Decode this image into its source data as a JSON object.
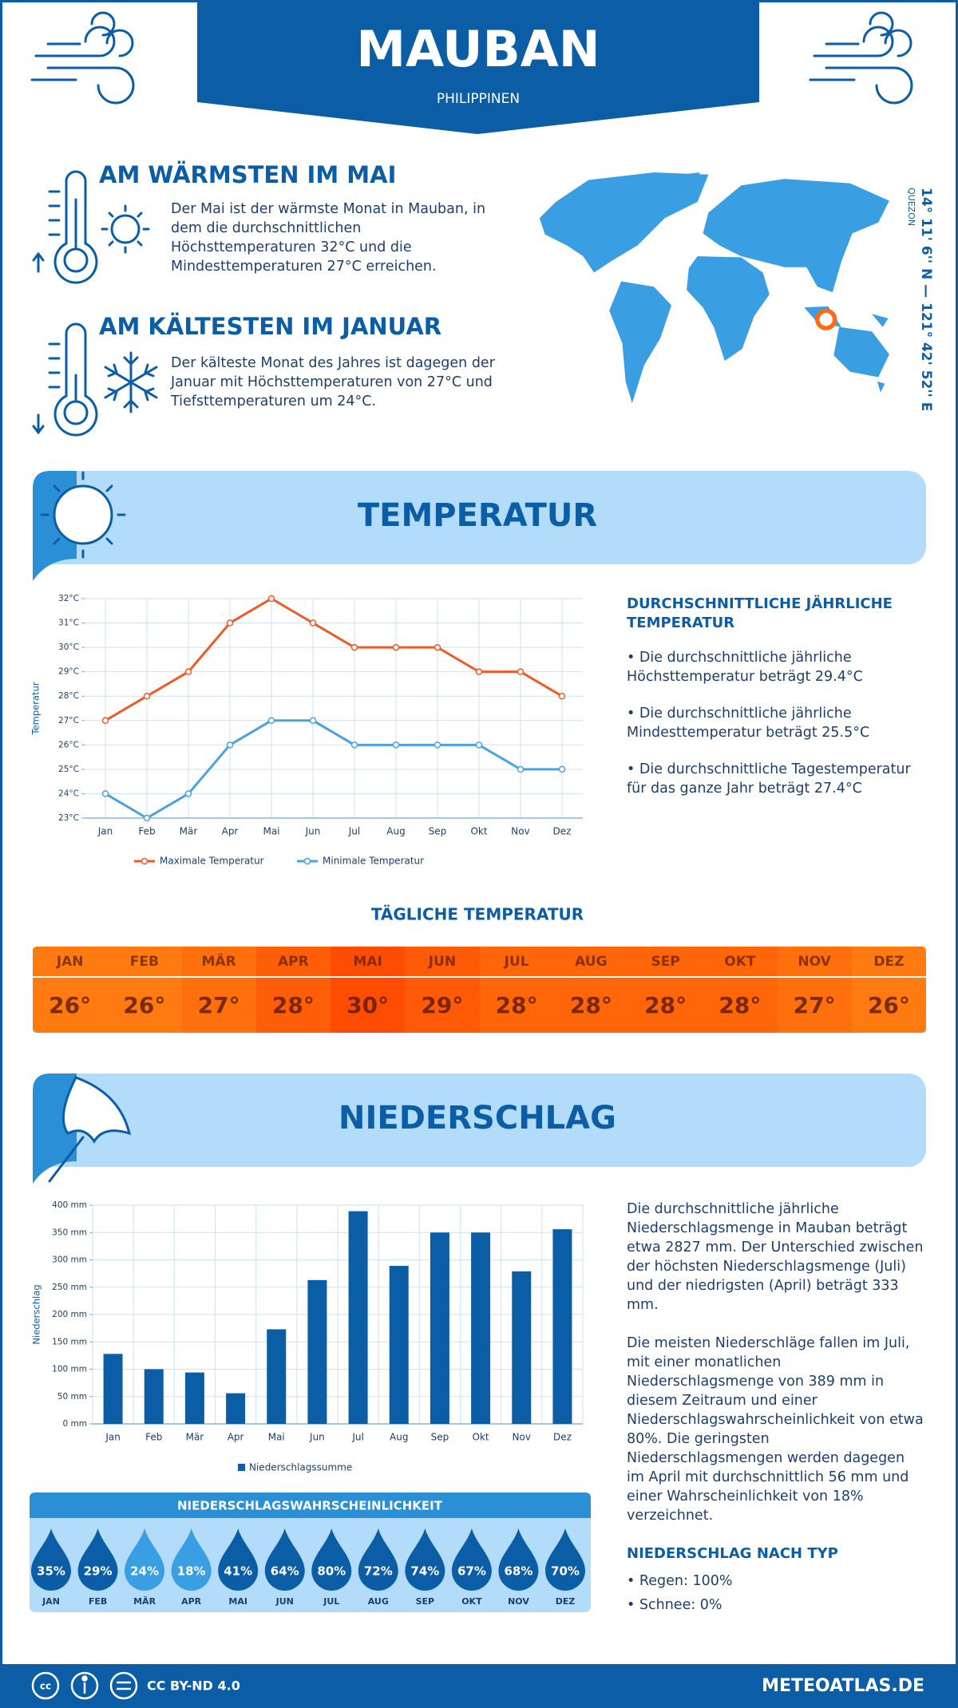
{
  "header": {
    "title": "MAUBAN",
    "subtitle": "PHILIPPINEN"
  },
  "warmest": {
    "title": "AM WÄRMSTEN IM MAI",
    "text": "Der Mai ist der wärmste Monat in Mauban, in dem die durchschnittlichen Höchsttemperaturen 32°C und die Mindesttemperaturen 27°C erreichen."
  },
  "coldest": {
    "title": "AM KÄLTESTEN IM JANUAR",
    "text": "Der kälteste Monat des Jahres ist dagegen der Januar mit Höchsttemperaturen von 27°C und Tiefsttemperaturen um 24°C."
  },
  "location": {
    "coordinates": "14° 11' 6'' N — 121° 42' 52'' E",
    "region": "QUEZON"
  },
  "temperature_section": {
    "title": "TEMPERATUR",
    "summary_title": "DURCHSCHNITTLICHE JÄHRLICHE TEMPERATUR",
    "bullets": [
      "• Die durchschnittliche jährliche Höchsttemperatur beträgt 29.4°C",
      "• Die durchschnittliche jährliche Mindesttemperatur beträgt 25.5°C",
      "• Die durchschnittliche Tagestemperatur für das ganze Jahr beträgt 27.4°C"
    ]
  },
  "chart_data": [
    {
      "type": "line",
      "y_label": "Temperatur",
      "categories": [
        "Jan",
        "Feb",
        "Mär",
        "Apr",
        "Mai",
        "Jun",
        "Jul",
        "Aug",
        "Sep",
        "Okt",
        "Nov",
        "Dez"
      ],
      "series": [
        {
          "name": "Maximale Temperatur",
          "color": "#f05a28",
          "values": [
            27,
            28,
            29,
            31,
            32,
            31,
            30,
            30,
            30,
            29,
            29,
            28
          ]
        },
        {
          "name": "Minimale Temperatur",
          "color": "#4aa3df",
          "values": [
            24,
            23,
            24,
            26,
            27,
            27,
            26,
            26,
            26,
            26,
            25,
            25
          ]
        }
      ],
      "ylim": [
        23,
        32
      ],
      "yticks": [
        {
          "value": 23,
          "label": "23°C"
        },
        {
          "value": 24,
          "label": "24°C"
        },
        {
          "value": 25,
          "label": "25°C"
        },
        {
          "value": 26,
          "label": "26°C"
        },
        {
          "value": 27,
          "label": "27°C"
        },
        {
          "value": 28,
          "label": "28°C"
        },
        {
          "value": 29,
          "label": "29°C"
        },
        {
          "value": 30,
          "label": "30°C"
        },
        {
          "value": 31,
          "label": "31°C"
        },
        {
          "value": 32,
          "label": "32°C"
        }
      ],
      "grid": true
    },
    {
      "type": "bar",
      "y_label": "Niederschlag",
      "categories": [
        "Jan",
        "Feb",
        "Mär",
        "Apr",
        "Mai",
        "Jun",
        "Jul",
        "Aug",
        "Sep",
        "Okt",
        "Nov",
        "Dez"
      ],
      "series": [
        {
          "name": "Niederschlagssumme",
          "color": "#0b5ea6",
          "values": [
            128,
            100,
            94,
            56,
            173,
            263,
            389,
            289,
            350,
            350,
            279,
            356
          ]
        }
      ],
      "ylim": [
        0,
        400
      ],
      "yticks": [
        {
          "value": 0,
          "label": "0 mm"
        },
        {
          "value": 50,
          "label": "50 mm"
        },
        {
          "value": 100,
          "label": "100 mm"
        },
        {
          "value": 150,
          "label": "150 mm"
        },
        {
          "value": 200,
          "label": "200 mm"
        },
        {
          "value": 250,
          "label": "250 mm"
        },
        {
          "value": 300,
          "label": "300 mm"
        },
        {
          "value": 350,
          "label": "350 mm"
        },
        {
          "value": 400,
          "label": "400 mm"
        }
      ],
      "grid": true
    }
  ],
  "daily_temperature": {
    "title": "TÄGLICHE TEMPERATUR",
    "months": [
      "JAN",
      "FEB",
      "MÄR",
      "APR",
      "MAI",
      "JUN",
      "JUL",
      "AUG",
      "SEP",
      "OKT",
      "NOV",
      "DEZ"
    ],
    "values": [
      26,
      26,
      27,
      28,
      30,
      29,
      28,
      28,
      28,
      28,
      27,
      26
    ],
    "value_labels": [
      "26°",
      "26°",
      "27°",
      "28°",
      "30°",
      "29°",
      "28°",
      "28°",
      "28°",
      "28°",
      "27°",
      "26°"
    ],
    "colors": [
      "#ff7a10",
      "#ff7a10",
      "#ff6f0c",
      "#ff5e08",
      "#ff4c03",
      "#ff5a07",
      "#ff660a",
      "#ff660a",
      "#ff660a",
      "#ff660a",
      "#ff6f0c",
      "#ff7a10"
    ]
  },
  "precipitation_section": {
    "title": "NIEDERSCHLAG",
    "paragraphs": [
      "Die durchschnittliche jährliche Niederschlagsmenge in Mauban beträgt etwa 2827 mm. Der Unterschied zwischen der höchsten Niederschlagsmenge (Juli) und der niedrigsten (April) beträgt 333 mm.",
      "Die meisten Niederschläge fallen im Juli, mit einer monatlichen Niederschlagsmenge von 389 mm in diesem Zeitraum und einer Niederschlagswahrscheinlichkeit von etwa 80%. Die geringsten Niederschlagsmengen werden dagegen im April mit durchschnittlich 56 mm und einer Wahrscheinlichkeit von 18% verzeichnet."
    ],
    "type_title": "NIEDERSCHLAG NACH TYP",
    "type_items": [
      "• Regen: 100%",
      "• Schnee: 0%"
    ]
  },
  "precipitation_probability": {
    "title": "NIEDERSCHLAGSWAHRSCHEINLICHKEIT",
    "months": [
      "JAN",
      "FEB",
      "MÄR",
      "APR",
      "MAI",
      "JUN",
      "JUL",
      "AUG",
      "SEP",
      "OKT",
      "NOV",
      "DEZ"
    ],
    "values": [
      35,
      29,
      24,
      18,
      41,
      64,
      80,
      72,
      74,
      67,
      68,
      70
    ],
    "value_labels": [
      "35%",
      "29%",
      "24%",
      "18%",
      "41%",
      "64%",
      "80%",
      "72%",
      "74%",
      "67%",
      "68%",
      "70%"
    ],
    "colors": [
      "#0b5ea6",
      "#0b5ea6",
      "#3a9ee3",
      "#3a9ee3",
      "#0b5ea6",
      "#0b5ea6",
      "#0b5ea6",
      "#0b5ea6",
      "#0b5ea6",
      "#0b5ea6",
      "#0b5ea6",
      "#0b5ea6"
    ]
  },
  "footer": {
    "license": "CC BY-ND 4.0",
    "site": "METEOATLAS.DE"
  }
}
